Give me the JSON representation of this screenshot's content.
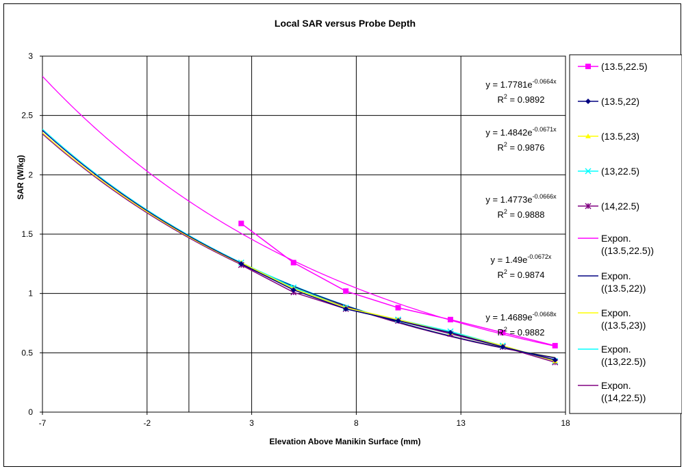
{
  "chart_data": {
    "type": "line",
    "title": "Local SAR versus Probe Depth",
    "xlabel": "Elevation Above Manikin Surface (mm)",
    "ylabel": "SAR (W/kg)",
    "xlim": [
      -7,
      18
    ],
    "ylim": [
      0,
      3
    ],
    "xticks": [
      -7,
      -2,
      3,
      8,
      13,
      18
    ],
    "yticks": [
      0,
      0.5,
      1,
      1.5,
      2,
      2.5,
      3
    ],
    "xtick_labels": [
      "-7",
      "-2",
      "3",
      "8",
      "13",
      "18"
    ],
    "ytick_labels": [
      "0",
      "0.5",
      "1",
      "1.5",
      "2",
      "2.5",
      "3"
    ],
    "grid": true,
    "legend_position": "right",
    "series": [
      {
        "name": "(13.5,22.5)",
        "color": "#ff00ff",
        "marker": "square",
        "x": [
          2.5,
          5,
          7.5,
          10,
          12.5,
          15,
          17.5
        ],
        "y": [
          1.59,
          1.26,
          1.02,
          0.88,
          0.78,
          0.67,
          0.56
        ],
        "fit": {
          "a": 1.7781,
          "b": -0.0664
        }
      },
      {
        "name": "(13.5,22)",
        "color": "#000080",
        "marker": "diamond",
        "x": [
          2.5,
          5,
          7.5,
          10,
          12.5,
          15,
          17.5
        ],
        "y": [
          1.25,
          1.03,
          0.87,
          0.77,
          0.67,
          0.55,
          0.44
        ],
        "fit": {
          "a": 1.4842,
          "b": -0.0671
        }
      },
      {
        "name": "(13.5,23)",
        "color": "#ffff00",
        "marker": "triangle",
        "x": [
          2.5,
          5,
          7.5,
          10,
          12.5,
          15,
          17.5
        ],
        "y": [
          1.26,
          1.04,
          0.88,
          0.78,
          0.67,
          0.56,
          0.43
        ],
        "fit": {
          "a": 1.4773,
          "b": -0.0666
        }
      },
      {
        "name": "(13,22.5)",
        "color": "#00ffff",
        "marker": "x",
        "x": [
          2.5,
          5,
          7.5,
          10,
          12.5,
          15,
          17.5
        ],
        "y": [
          1.26,
          1.05,
          0.88,
          0.78,
          0.68,
          0.56,
          0.43
        ],
        "fit": {
          "a": 1.49,
          "b": -0.0672
        }
      },
      {
        "name": "(14,22.5)",
        "color": "#800080",
        "marker": "star",
        "x": [
          2.5,
          5,
          7.5,
          10,
          12.5,
          15,
          17.5
        ],
        "y": [
          1.24,
          1.01,
          0.87,
          0.77,
          0.66,
          0.55,
          0.42
        ],
        "fit": {
          "a": 1.4689,
          "b": -0.0668
        }
      }
    ],
    "trendline_legend": [
      {
        "line1": "Expon.",
        "line2": "((13.5,22.5))",
        "color": "#ff00ff"
      },
      {
        "line1": "Expon.",
        "line2": "((13.5,22))",
        "color": "#000080"
      },
      {
        "line1": "Expon.",
        "line2": "((13.5,23))",
        "color": "#ffff00"
      },
      {
        "line1": "Expon.",
        "line2": "((13,22.5))",
        "color": "#00ffff"
      },
      {
        "line1": "Expon.",
        "line2": "((14,22.5))",
        "color": "#800080"
      }
    ],
    "annotations": [
      {
        "pre": "y = 1.7781e",
        "sup": "-0.0664x",
        "r2": "= 0.9892"
      },
      {
        "pre": "y = 1.4842e",
        "sup": "-0.0671x",
        "r2": "= 0.9876"
      },
      {
        "pre": "y = 1.4773e",
        "sup": "-0.0666x",
        "r2": "= 0.9888"
      },
      {
        "pre": "y = 1.49e",
        "sup": "-0.0672x",
        "r2": "= 0.9874"
      },
      {
        "pre": "y = 1.4689e",
        "sup": "-0.0668x",
        "r2": "= 0.9882"
      }
    ],
    "r2_label": "R",
    "r2_sup": "2"
  }
}
